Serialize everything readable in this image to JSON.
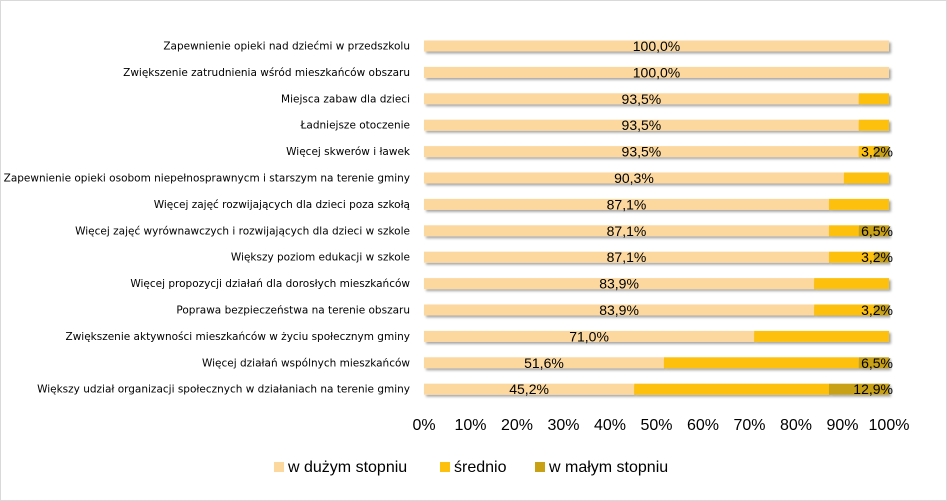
{
  "chart_data": {
    "type": "bar",
    "orientation": "horizontal",
    "stacked": "percent",
    "categories": [
      "Zapewnienie opieki nad dziećmi w przedszkolu",
      "Zwiększenie zatrudnienia wśród mieszkańców obszaru",
      "Miejsca zabaw dla dzieci",
      "Ładniejsze otoczenie",
      "Więcej skwerów i ławek",
      "Zapewnienie opieki osobom niepełnosprawnycm i starszym na terenie gminy",
      "Więcej zajęć rozwijających dla dzieci poza szkołą",
      "Więcej zajęć wyrównawczych i rozwijających dla dzieci w szkole",
      "Większy poziom edukacji w szkole",
      "Więcej propozycji działań dla dorosłych mieszkańców",
      "Poprawa bezpieczeństwa na terenie obszaru",
      "Zwiększenie aktywności mieszkańców w życiu społecznym gminy",
      "Więcej działań wspólnych mieszkańców",
      "Większy udział organizacji społecznych w działaniach na terenie gminy"
    ],
    "series": [
      {
        "name": "w dużym stopniu",
        "color": "#fcd89f",
        "values": [
          100.0,
          100.0,
          93.5,
          93.5,
          93.5,
          90.3,
          87.1,
          87.1,
          87.1,
          83.9,
          83.9,
          71.0,
          51.6,
          45.2
        ],
        "labels": [
          "100,0%",
          "100,0%",
          "93,5%",
          "93,5%",
          "93,5%",
          "90,3%",
          "87,1%",
          "87,1%",
          "87,1%",
          "83,9%",
          "83,9%",
          "71,0%",
          "51,6%",
          "45,2%"
        ]
      },
      {
        "name": "średnio",
        "color": "#fcc00d",
        "values": [
          0,
          0,
          6.5,
          6.5,
          3.3,
          9.7,
          12.9,
          6.4,
          9.7,
          16.1,
          12.9,
          29.0,
          41.9,
          41.9
        ],
        "labels": [
          "",
          "",
          "",
          "",
          "",
          "",
          "",
          "",
          "",
          "",
          "",
          "",
          "",
          ""
        ]
      },
      {
        "name": "w małym stopniu",
        "color": "#c9a114",
        "values": [
          0,
          0,
          0,
          0,
          3.2,
          0,
          0,
          6.5,
          3.2,
          0,
          3.2,
          0,
          6.5,
          12.9
        ],
        "labels": [
          "",
          "",
          "",
          "",
          "3,2%",
          "",
          "",
          "6,5%",
          "3,2%",
          "",
          "3,2%",
          "",
          "6,5%",
          "12,9%"
        ]
      }
    ],
    "xlim": [
      0,
      100
    ],
    "xticks": [
      "0%",
      "10%",
      "20%",
      "30%",
      "40%",
      "50%",
      "60%",
      "70%",
      "80%",
      "90%",
      "100%"
    ],
    "grid": false,
    "legend_position": "bottom"
  }
}
